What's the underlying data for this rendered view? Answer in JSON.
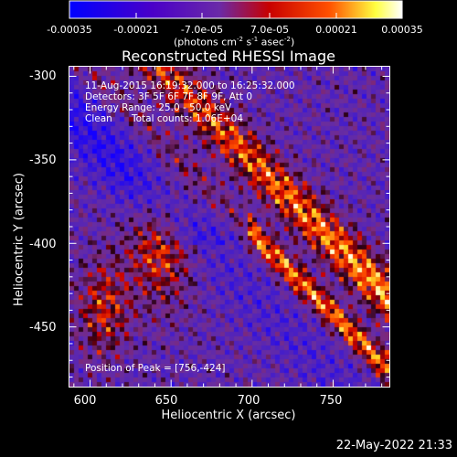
{
  "colorbar": {
    "tick_labels": [
      "-0.00035",
      "-0.00021",
      "-7.0e-05",
      "7.0e-05",
      "0.00021",
      "0.00035"
    ],
    "range": [
      -0.00035,
      0.00035
    ],
    "unit_label": "(photons cm^-2 s^-1 asec^-2)",
    "colors": [
      "#0000ff",
      "#4a00c8",
      "#6a2aa8",
      "#c80000",
      "#ff5000",
      "#ffff40",
      "#ffffff"
    ]
  },
  "plot": {
    "title": "Reconstructed RHESSI Image",
    "xlabel": "Heliocentric X (arcsec)",
    "ylabel": "Heliocentric Y (arcsec)",
    "x_ticks": [
      "600",
      "650",
      "700",
      "750"
    ],
    "y_ticks": [
      "-300",
      "-350",
      "-400",
      "-450"
    ]
  },
  "annotations": {
    "time": "11-Aug-2015 16:19:32.000 to 16:25:32.000",
    "detectors": "Detectors: 3F 5F 6F 7F 8F 9F, Att 0",
    "energy": "Energy Range: 25.0 - 50.0 keV",
    "clean": "Clean",
    "counts": "Total counts: 1.06E+04",
    "peak": "Position of Peak = [756,-424]"
  },
  "footer": {
    "timestamp": "22-May-2022 21:33"
  },
  "chart_data": {
    "type": "heatmap",
    "title": "Reconstructed RHESSI Image",
    "xlabel": "Heliocentric X (arcsec)",
    "ylabel": "Heliocentric Y (arcsec)",
    "xlim": [
      587,
      785
    ],
    "ylim": [
      -486,
      -294
    ],
    "x_ticks": [
      600,
      650,
      700,
      750
    ],
    "y_ticks": [
      -300,
      -350,
      -400,
      -450
    ],
    "colorbar_range": [
      -0.00035,
      0.00035
    ],
    "peak": [
      756,
      -424
    ]
  }
}
